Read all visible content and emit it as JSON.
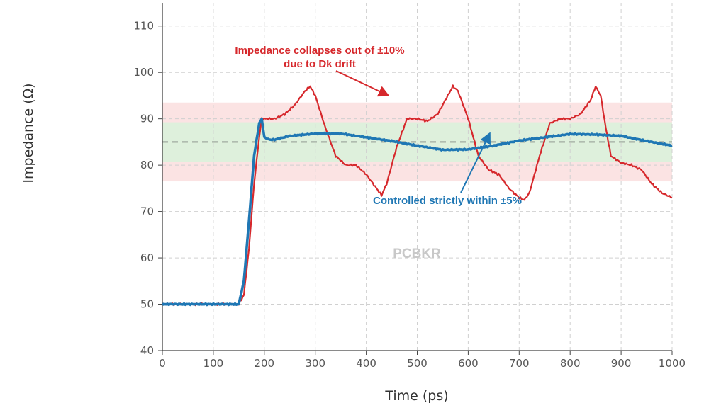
{
  "chart_data": {
    "type": "line",
    "xlabel": "Time (ps)",
    "ylabel": "Impedance (Ω)",
    "xlim": [
      0,
      1000
    ],
    "ylim": [
      40,
      115
    ],
    "xticks": [
      0,
      100,
      200,
      300,
      400,
      500,
      600,
      700,
      800,
      900,
      1000
    ],
    "yticks": [
      40,
      50,
      60,
      70,
      80,
      90,
      100,
      110
    ],
    "grid": true,
    "reference_line": 85,
    "bands": [
      {
        "range": [
          76.5,
          93.5
        ],
        "color": "#fbe3e3"
      },
      {
        "range": [
          80.75,
          89.25
        ],
        "color": "#def0dc"
      }
    ],
    "series": [
      {
        "color": "#d6282c",
        "x": [
          0,
          50,
          100,
          150,
          160,
          170,
          180,
          190,
          195,
          200,
          220,
          240,
          260,
          280,
          290,
          300,
          320,
          340,
          360,
          380,
          400,
          420,
          430,
          440,
          460,
          480,
          500,
          520,
          540,
          560,
          570,
          580,
          600,
          620,
          640,
          660,
          680,
          700,
          710,
          720,
          740,
          760,
          780,
          800,
          820,
          840,
          850,
          860,
          870,
          880,
          900,
          920,
          940,
          960,
          980,
          1000
        ],
        "y": [
          50,
          50,
          50,
          50,
          52,
          62,
          76,
          86,
          90,
          90,
          90,
          91,
          93,
          96,
          97,
          95,
          88,
          82,
          80,
          80,
          78,
          75,
          73.5,
          76,
          84,
          90,
          90,
          89.5,
          91,
          95,
          97,
          96,
          90,
          82,
          79,
          78,
          75,
          73,
          72.5,
          74,
          82,
          89,
          90,
          90,
          91,
          94,
          97,
          95,
          88,
          82,
          80.5,
          80,
          79,
          76,
          74,
          73
        ]
      },
      {
        "color": "#1f77b4",
        "x": [
          0,
          50,
          100,
          150,
          160,
          170,
          180,
          190,
          195,
          200,
          210,
          220,
          250,
          300,
          350,
          400,
          450,
          500,
          550,
          600,
          650,
          700,
          750,
          800,
          850,
          900,
          950,
          1000
        ],
        "y": [
          50,
          50,
          50,
          50,
          55,
          68,
          82,
          89,
          90,
          86,
          85.5,
          85.5,
          86.3,
          86.8,
          86.8,
          86,
          85.2,
          84.2,
          83.3,
          83.4,
          84.2,
          85.3,
          86,
          86.7,
          86.6,
          86.3,
          85.2,
          84.2
        ]
      }
    ],
    "annotations": [
      {
        "line1": "Impedance collapses out of ±10%",
        "line2": "due to Dk drift",
        "color": "#d6282c"
      },
      {
        "text": "Controlled strictly within ±5%",
        "color": "#1f77b4"
      }
    ],
    "watermark": "PCBKR"
  }
}
